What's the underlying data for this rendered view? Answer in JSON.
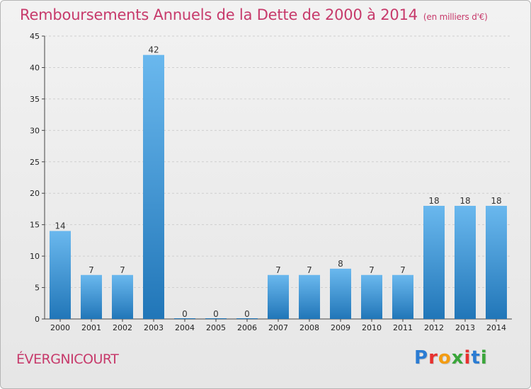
{
  "title": "Remboursements Annuels de la Dette de 2000 à 2014",
  "unit": "(en milliers d'€)",
  "town": "ÉVERGNICOURT",
  "logo": {
    "letters": [
      "P",
      "r",
      "o",
      "x",
      "i",
      "t",
      "i"
    ],
    "colors": [
      "#2b7cd3",
      "#e8312f",
      "#f39c12",
      "#3aa63a",
      "#e8312f",
      "#2b7cd3",
      "#3aa63a"
    ]
  },
  "colors": {
    "bar_top": "#6ab8ee",
    "bar_bottom": "#2176b8",
    "title": "#c73a6b",
    "grid": "#cfcfcf"
  },
  "chart_data": {
    "type": "bar",
    "categories": [
      "2000",
      "2001",
      "2002",
      "2003",
      "2004",
      "2005",
      "2006",
      "2007",
      "2008",
      "2009",
      "2010",
      "2011",
      "2012",
      "2013",
      "2014"
    ],
    "values": [
      14,
      7,
      7,
      42,
      0,
      0,
      0,
      7,
      7,
      8,
      7,
      7,
      18,
      18,
      18
    ],
    "y_ticks": [
      0,
      5,
      10,
      15,
      20,
      25,
      30,
      35,
      40,
      45
    ],
    "ylim": [
      0,
      45
    ],
    "grid": true
  }
}
